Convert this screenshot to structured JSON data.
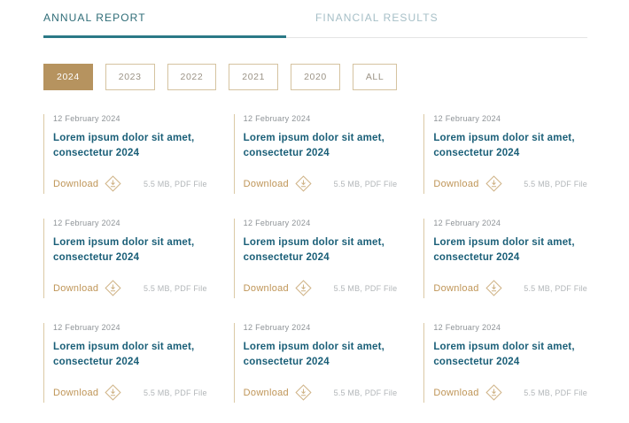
{
  "tabs": [
    {
      "label": "ANNUAL REPORT",
      "active": true
    },
    {
      "label": "FINANCIAL RESULTS",
      "active": false
    }
  ],
  "filters": [
    {
      "label": "2024",
      "active": true
    },
    {
      "label": "2023",
      "active": false
    },
    {
      "label": "2022",
      "active": false
    },
    {
      "label": "2021",
      "active": false
    },
    {
      "label": "2020",
      "active": false
    },
    {
      "label": "ALL",
      "active": false
    }
  ],
  "cards": [
    {
      "date": "12 February 2024",
      "title": "Lorem ipsum dolor sit amet, consectetur 2024",
      "download_label": "Download",
      "download_icon": "download-diamond-icon",
      "file_info": "5.5 MB, PDF File"
    },
    {
      "date": "12 February 2024",
      "title": "Lorem ipsum dolor sit amet, consectetur 2024",
      "download_label": "Download",
      "download_icon": "download-diamond-icon",
      "file_info": "5.5 MB, PDF File"
    },
    {
      "date": "12 February 2024",
      "title": "Lorem ipsum dolor sit amet, consectetur 2024",
      "download_label": "Download",
      "download_icon": "download-diamond-icon",
      "file_info": "5.5 MB, PDF File"
    },
    {
      "date": "12 February 2024",
      "title": "Lorem ipsum dolor sit amet, consectetur 2024",
      "download_label": "Download",
      "download_icon": "download-diamond-icon",
      "file_info": "5.5 MB, PDF File"
    },
    {
      "date": "12 February 2024",
      "title": "Lorem ipsum dolor sit amet, consectetur 2024",
      "download_label": "Download",
      "download_icon": "download-diamond-icon",
      "file_info": "5.5 MB, PDF File"
    },
    {
      "date": "12 February 2024",
      "title": "Lorem ipsum dolor sit amet, consectetur 2024",
      "download_label": "Download",
      "download_icon": "download-diamond-icon",
      "file_info": "5.5 MB, PDF File"
    },
    {
      "date": "12 February 2024",
      "title": "Lorem ipsum dolor sit amet, consectetur 2024",
      "download_label": "Download",
      "download_icon": "download-diamond-icon",
      "file_info": "5.5 MB, PDF File"
    },
    {
      "date": "12 February 2024",
      "title": "Lorem ipsum dolor sit amet, consectetur 2024",
      "download_label": "Download",
      "download_icon": "download-diamond-icon",
      "file_info": "5.5 MB, PDF File"
    },
    {
      "date": "12 February 2024",
      "title": "Lorem ipsum dolor sit amet, consectetur 2024",
      "download_label": "Download",
      "download_icon": "download-diamond-icon",
      "file_info": "5.5 MB, PDF File"
    }
  ],
  "colors": {
    "tab_active": "#2e6c77",
    "tab_underline": "#2b7986",
    "tab_inactive": "#a6bfc7",
    "filter_active_bg": "#b6935f",
    "filter_border": "#d5c3a0",
    "card_border": "#dbc9a5",
    "title_text": "#1a5f78",
    "download_text": "#bf9557",
    "muted_text": "#8e9397"
  }
}
